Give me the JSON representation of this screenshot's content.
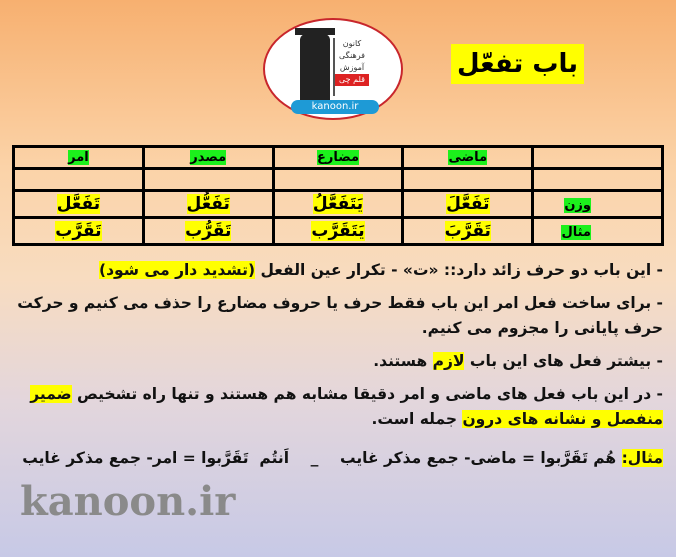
{
  "logo": {
    "lines": [
      "کانون",
      "فرهنگی",
      "آموزش",
      "قلم چی"
    ],
    "url": "kanoon.ir"
  },
  "title": "باب تفعّل",
  "table": {
    "headers": [
      "",
      "ماضی",
      "مضارع",
      "مصدر",
      "امر"
    ],
    "rows": [
      {
        "label": "",
        "cells": [
          "",
          "",
          "",
          ""
        ]
      },
      {
        "label": "وزن",
        "cells": [
          "تَفَعَّلَ",
          "یَتَفَعَّلُ",
          "تَفَعُّل",
          "تَفَعَّل"
        ]
      },
      {
        "label": "مثال",
        "cells": [
          "تَقَرَّبَ",
          "یَتَقَرَّب",
          "تَقَرُّب",
          "تَقَرَّب"
        ]
      }
    ]
  },
  "paragraphs": [
    [
      {
        "t": "- این باب دو حرف زائد دارد:: «ت» - تکرار عین الفعل "
      },
      {
        "t": "(تشدید دار می شود)",
        "hl": true
      }
    ],
    [
      {
        "t": "- برای ساخت فعل امر این باب فقط حرف یا حروف مضارع را حذف می کنیم و حرکت حرف پایانی را مجزوم می کنیم."
      }
    ],
    [
      {
        "t": "- بیشتر فعل های این باب "
      },
      {
        "t": "لازم",
        "hl": true
      },
      {
        "t": " هستند."
      }
    ],
    [
      {
        "t": "- در این باب فعل های ماضی و امر دقیقا مشابه هم هستند و تنها راه تشخیص "
      },
      {
        "t": "ضمیر منفصل و نشانه های درون",
        "hl": true
      },
      {
        "t": " جمله است."
      }
    ],
    [
      {
        "t": "مثال:",
        "hl": true
      },
      {
        "t": " هُم تَقَرَّبوا = ماضی- جمع مذکر غایب    _    اَنتُم  تَقَرَّبوا = امر- جمع مذکر غایب"
      }
    ]
  ],
  "watermark": "kanoon.ir"
}
